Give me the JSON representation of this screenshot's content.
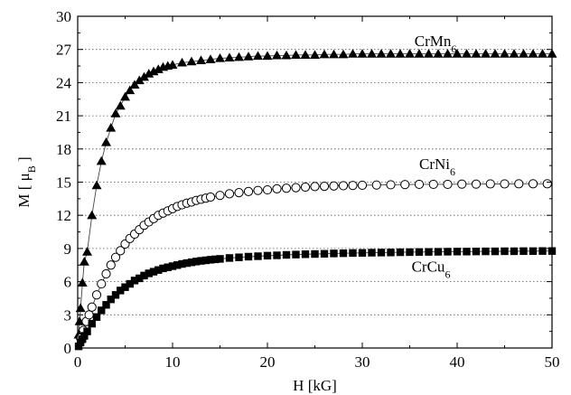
{
  "chart_data": {
    "type": "scatter",
    "title": "",
    "xlabel": "H [kG]",
    "ylabel_main": "M [ μ",
    "ylabel_sub": "B",
    "ylabel_end": " ]",
    "xlim": [
      0,
      50
    ],
    "ylim": [
      0,
      30
    ],
    "x_ticks": [
      "0",
      "10",
      "20",
      "30",
      "40",
      "50"
    ],
    "y_ticks": [
      "0",
      "3",
      "6",
      "9",
      "12",
      "15",
      "18",
      "21",
      "24",
      "27",
      "30"
    ],
    "grid": "horizontal dotted",
    "legend": "none (series labeled inline)",
    "series": [
      {
        "name": "CrMn",
        "name_sub": "6",
        "marker": "filled-triangle",
        "has_fit_line": true,
        "x": [
          0.1,
          0.2,
          0.3,
          0.5,
          0.7,
          1.0,
          1.5,
          2.0,
          2.5,
          3.0,
          3.5,
          4.0,
          4.5,
          5.0,
          5.5,
          6.0,
          6.5,
          7.0,
          7.5,
          8.0,
          8.5,
          9.0,
          9.5,
          10.0,
          11.0,
          12.0,
          13.0,
          14.0,
          15.0,
          16.0,
          17.0,
          18.0,
          19.0,
          20.0,
          21.0,
          22.0,
          23.0,
          24.0,
          25.0,
          26.0,
          27.0,
          28.0,
          29.0,
          30.0,
          31.0,
          32.0,
          33.0,
          34.0,
          35.0,
          36.0,
          37.0,
          38.0,
          39.0,
          40.0,
          41.0,
          42.0,
          43.0,
          44.0,
          45.0,
          46.0,
          47.0,
          48.0,
          49.0,
          50.0
        ],
        "y": [
          1.2,
          2.4,
          3.6,
          5.9,
          7.8,
          8.7,
          12.0,
          14.7,
          16.9,
          18.6,
          19.9,
          21.2,
          21.9,
          22.7,
          23.3,
          23.8,
          24.2,
          24.5,
          24.8,
          25.0,
          25.2,
          25.4,
          25.5,
          25.6,
          25.8,
          25.9,
          26.0,
          26.1,
          26.2,
          26.25,
          26.3,
          26.35,
          26.4,
          26.4,
          26.45,
          26.45,
          26.5,
          26.5,
          26.5,
          26.55,
          26.55,
          26.55,
          26.6,
          26.6,
          26.6,
          26.6,
          26.6,
          26.6,
          26.6,
          26.6,
          26.6,
          26.6,
          26.6,
          26.6,
          26.6,
          26.6,
          26.6,
          26.6,
          26.6,
          26.6,
          26.6,
          26.6,
          26.6,
          26.6
        ]
      },
      {
        "name": "CrNi",
        "name_sub": "6",
        "marker": "open-circle",
        "has_fit_line": true,
        "x": [
          0.3,
          0.6,
          0.9,
          1.2,
          1.5,
          2.0,
          2.5,
          3.0,
          3.5,
          4.0,
          4.5,
          5.0,
          5.5,
          6.0,
          6.5,
          7.0,
          7.5,
          8.0,
          8.5,
          9.0,
          9.5,
          10.0,
          10.5,
          11.0,
          11.5,
          12.0,
          12.5,
          13.0,
          13.5,
          14.0,
          15.0,
          16.0,
          17.0,
          18.0,
          19.0,
          20.0,
          21.0,
          22.0,
          23.0,
          24.0,
          25.0,
          26.0,
          27.0,
          28.0,
          29.0,
          30.0,
          31.5,
          33.0,
          34.5,
          36.0,
          37.5,
          39.0,
          40.5,
          42.0,
          43.5,
          45.0,
          46.5,
          48.0,
          49.5
        ],
        "y": [
          0.9,
          1.6,
          2.4,
          3.0,
          3.7,
          4.8,
          5.8,
          6.7,
          7.5,
          8.2,
          8.8,
          9.4,
          9.9,
          10.3,
          10.7,
          11.1,
          11.4,
          11.7,
          12.0,
          12.2,
          12.4,
          12.6,
          12.8,
          12.95,
          13.1,
          13.2,
          13.35,
          13.45,
          13.55,
          13.65,
          13.8,
          13.95,
          14.05,
          14.15,
          14.25,
          14.3,
          14.4,
          14.45,
          14.5,
          14.55,
          14.6,
          14.62,
          14.65,
          14.68,
          14.7,
          14.72,
          14.74,
          14.76,
          14.78,
          14.8,
          14.8,
          14.8,
          14.82,
          14.82,
          14.84,
          14.84,
          14.85,
          14.85,
          14.85
        ]
      },
      {
        "name": "CrCu",
        "name_sub": "6",
        "marker": "filled-square",
        "has_fit_line": true,
        "x": [
          0.1,
          0.3,
          0.5,
          0.7,
          1.0,
          1.5,
          2.0,
          2.5,
          3.0,
          3.5,
          4.0,
          4.5,
          5.0,
          5.5,
          6.0,
          6.5,
          7.0,
          7.5,
          8.0,
          8.5,
          9.0,
          9.5,
          10.0,
          10.5,
          11.0,
          11.5,
          12.0,
          12.5,
          13.0,
          13.5,
          14.0,
          14.5,
          15.0,
          16.0,
          17.0,
          18.0,
          19.0,
          20.0,
          21.0,
          22.0,
          23.0,
          24.0,
          25.0,
          26.0,
          27.0,
          28.0,
          29.0,
          30.0,
          31.0,
          32.0,
          33.0,
          34.0,
          35.0,
          36.0,
          37.0,
          38.0,
          39.0,
          40.0,
          41.0,
          42.0,
          43.0,
          44.0,
          45.0,
          46.0,
          47.0,
          48.0,
          49.0,
          50.0
        ],
        "y": [
          0.15,
          0.5,
          0.8,
          1.1,
          1.5,
          2.2,
          2.8,
          3.4,
          3.9,
          4.4,
          4.8,
          5.2,
          5.5,
          5.8,
          6.1,
          6.3,
          6.55,
          6.75,
          6.9,
          7.05,
          7.2,
          7.3,
          7.4,
          7.5,
          7.6,
          7.68,
          7.75,
          7.82,
          7.88,
          7.93,
          7.98,
          8.02,
          8.06,
          8.14,
          8.2,
          8.26,
          8.3,
          8.35,
          8.38,
          8.42,
          8.45,
          8.48,
          8.5,
          8.52,
          8.55,
          8.57,
          8.59,
          8.6,
          8.62,
          8.63,
          8.64,
          8.66,
          8.67,
          8.68,
          8.69,
          8.7,
          8.71,
          8.72,
          8.72,
          8.73,
          8.74,
          8.74,
          8.75,
          8.75,
          8.76,
          8.76,
          8.77,
          8.77
        ]
      }
    ],
    "series_label_anchor": [
      {
        "x": 35.5,
        "y": 27.3
      },
      {
        "x": 36.0,
        "y": 16.2
      },
      {
        "x": 35.2,
        "y": 6.9
      }
    ]
  }
}
